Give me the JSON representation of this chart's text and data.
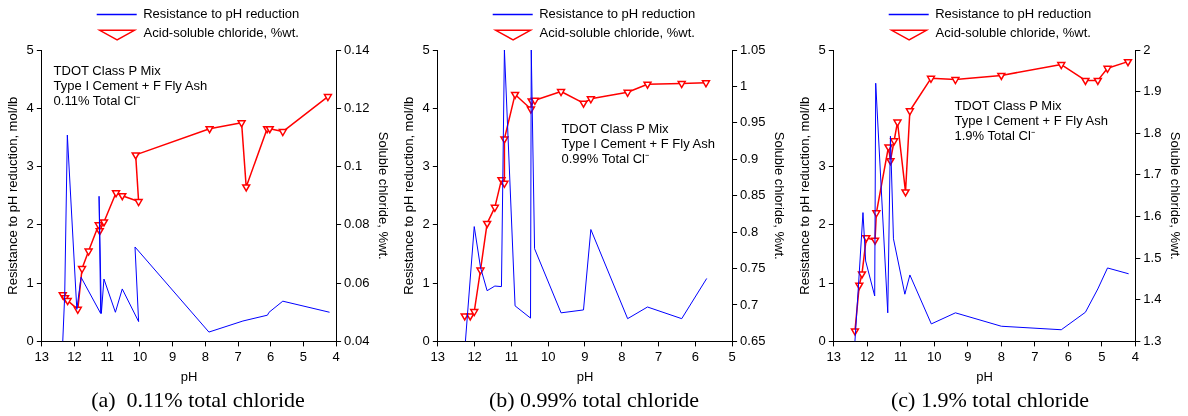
{
  "chart_data": [
    {
      "type": "line",
      "title": "(a)  0.11% total chloride",
      "xlabel": "pH",
      "ylabel": "Resistance to pH reduction, mol/lb",
      "y2label": "Soluble chloride, %wt.",
      "annotations": [
        "TDOT Class P Mix",
        "Type I Cement + F Fly Ash",
        "0.11% Total Cl⁻"
      ],
      "xlim": [
        13,
        4
      ],
      "xticks": [
        13,
        12,
        11,
        10,
        9,
        8,
        7,
        6,
        5,
        4
      ],
      "ylim": [
        0,
        5
      ],
      "yticks": [
        0,
        1,
        2,
        3,
        4,
        5
      ],
      "y2lim": [
        0.04,
        0.14
      ],
      "y2ticks": [
        0.04,
        0.06,
        0.08,
        0.1,
        0.12,
        0.14
      ],
      "legend": "top",
      "series": [
        {
          "name": "Resistance to pH reduction",
          "color": "#0000ff",
          "marker": "none",
          "x": [
            12.36,
            12.3,
            12.22,
            11.93,
            11.8,
            11.2,
            11.25,
            11.18,
            11.1,
            10.75,
            10.54,
            10.04,
            10.15,
            7.89,
            6.85,
            6.1,
            6.05,
            5.63,
            4.2
          ],
          "values": [
            0,
            0.8,
            3.54,
            0.55,
            1.1,
            0.48,
            2.49,
            0.48,
            1.07,
            0.5,
            0.9,
            0.34,
            1.62,
            0.16,
            0.35,
            0.45,
            0.5,
            0.69,
            0.5
          ]
        },
        {
          "name": "Acid-soluble chloride, %wt.",
          "color": "#ff0000",
          "marker": "triangle",
          "axis": "y2",
          "x": [
            12.36,
            12.29,
            12.21,
            11.9,
            11.77,
            11.57,
            11.26,
            11.23,
            11.1,
            10.73,
            10.54,
            10.04,
            10.13,
            7.87,
            6.89,
            6.75,
            6.11,
            6.03,
            5.63,
            4.25
          ],
          "values": [
            0.056,
            0.055,
            0.054,
            0.051,
            0.065,
            0.071,
            0.08,
            0.078,
            0.081,
            0.091,
            0.09,
            0.088,
            0.104,
            0.113,
            0.115,
            0.093,
            0.113,
            0.113,
            0.112,
            0.124
          ]
        }
      ]
    },
    {
      "type": "line",
      "title": "(b) 0.99% total chloride",
      "xlabel": "pH",
      "ylabel": "Resistance to pH reduction, mol/lb",
      "y2label": "Soluble chloride, %wt.",
      "annotations": [
        "TDOT Class P Mix",
        "Type I Cement + F Fly Ash",
        "0.99% Total Cl⁻"
      ],
      "xlim": [
        13,
        5
      ],
      "xticks": [
        13,
        12,
        11,
        10,
        9,
        8,
        7,
        6,
        5
      ],
      "ylim": [
        0,
        5
      ],
      "yticks": [
        0,
        1,
        2,
        3,
        4,
        5
      ],
      "y2lim": [
        0.65,
        1.05
      ],
      "y2ticks": [
        0.65,
        0.7,
        0.75,
        0.8,
        0.85,
        0.9,
        0.95,
        1,
        1.05
      ],
      "legend": "top",
      "series": [
        {
          "name": "Resistance to pH reduction",
          "color": "#0000ff",
          "marker": "none",
          "x": [
            12.25,
            12.01,
            11.84,
            11.66,
            11.45,
            11.27,
            11.19,
            10.9,
            10.48,
            10.46,
            10.37,
            9.65,
            9.04,
            8.84,
            7.84,
            7.3,
            6.37,
            5.69
          ],
          "values": [
            0,
            1.97,
            1.27,
            0.87,
            0.95,
            0.94,
            5,
            0.61,
            0.4,
            5,
            1.59,
            0.49,
            0.54,
            1.92,
            0.39,
            0.59,
            0.39,
            1.08
          ]
        },
        {
          "name": "Acid-soluble chloride, %wt.",
          "color": "#ff0000",
          "marker": "triangle",
          "axis": "y2",
          "x": [
            12.27,
            12.12,
            12.01,
            11.84,
            11.66,
            11.45,
            11.27,
            11.19,
            11.19,
            10.9,
            10.47,
            10.45,
            10.36,
            9.65,
            9.04,
            8.84,
            7.84,
            7.3,
            6.37,
            5.71
          ],
          "values": [
            0.685,
            0.685,
            0.691,
            0.748,
            0.812,
            0.834,
            0.872,
            0.867,
            0.928,
            0.989,
            0.969,
            0.98,
            0.981,
            0.993,
            0.977,
            0.983,
            0.992,
            1.003,
            1.004,
            1.005
          ]
        }
      ]
    },
    {
      "type": "line",
      "title": "(c) 1.9% total chloride",
      "xlabel": "pH",
      "ylabel": "Resistance to pH reduction, mol/lb",
      "y2label": "Soluble chloride, %wt.",
      "annotations": [
        "TDOT Class P Mix",
        "Type I Cement + F Fly Ash",
        "1.9% Total Cl⁻"
      ],
      "xlim": [
        13,
        4
      ],
      "xticks": [
        13,
        12,
        11,
        10,
        9,
        8,
        7,
        6,
        5,
        4
      ],
      "ylim": [
        0,
        5
      ],
      "yticks": [
        0,
        1,
        2,
        3,
        4,
        5
      ],
      "y2lim": [
        1.3,
        2
      ],
      "y2ticks": [
        1.3,
        1.4,
        1.5,
        1.6,
        1.7,
        1.8,
        1.9,
        2
      ],
      "legend": "top",
      "series": [
        {
          "name": "Resistance to pH reduction",
          "color": "#0000ff",
          "marker": "none",
          "x": [
            12.37,
            12.26,
            12.13,
            12.05,
            11.78,
            11.75,
            11.39,
            11.31,
            11.22,
            10.88,
            10.73,
            10.09,
            9.37,
            8.0,
            6.21,
            5.49,
            5.12,
            4.83,
            4.2
          ],
          "values": [
            0,
            1.0,
            2.21,
            1.38,
            0.78,
            4.43,
            0.49,
            3.52,
            1.76,
            0.81,
            1.14,
            0.3,
            0.49,
            0.26,
            0.2,
            0.5,
            0.9,
            1.26,
            1.16
          ]
        },
        {
          "name": "Acid-soluble chloride, %wt.",
          "color": "#ff0000",
          "marker": "triangle",
          "axis": "y2",
          "x": [
            12.37,
            12.24,
            12.16,
            12.03,
            11.77,
            11.73,
            11.37,
            11.31,
            11.2,
            11.1,
            10.86,
            10.73,
            10.1,
            9.37,
            8.0,
            6.21,
            5.49,
            5.12,
            4.83,
            4.22
          ],
          "values": [
            1.325,
            1.435,
            1.462,
            1.549,
            1.543,
            1.609,
            1.767,
            1.734,
            1.782,
            1.827,
            1.659,
            1.854,
            1.932,
            1.929,
            1.939,
            1.965,
            1.927,
            1.927,
            1.956,
            1.972
          ]
        }
      ]
    }
  ]
}
